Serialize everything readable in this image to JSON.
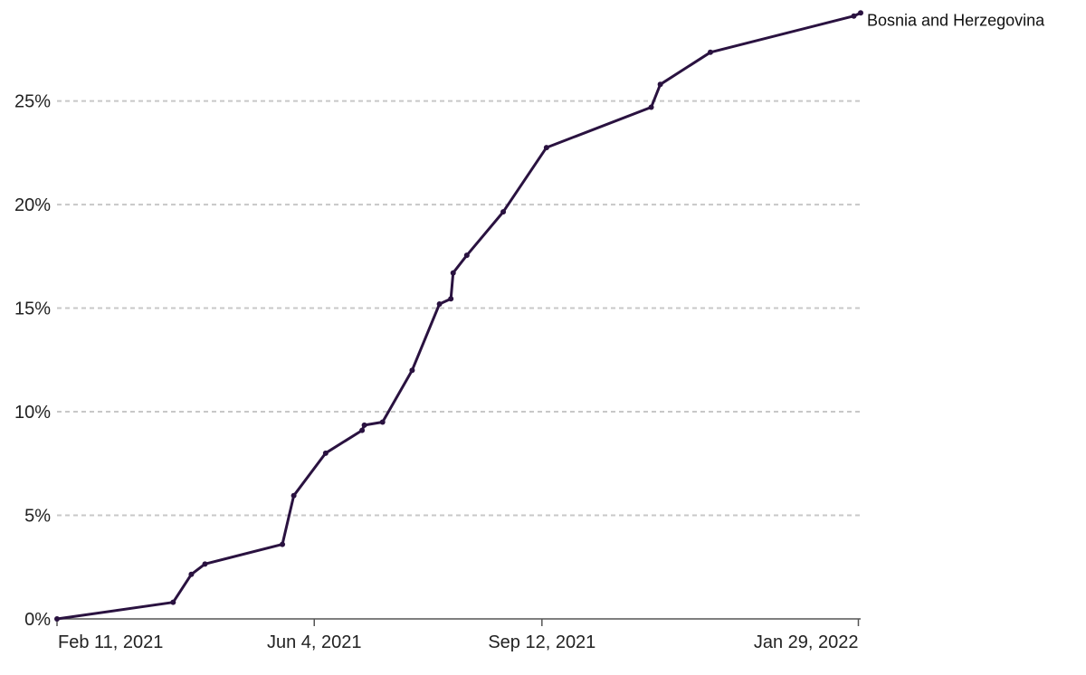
{
  "chart_data": {
    "type": "line",
    "title": "",
    "xlabel": "",
    "ylabel": "",
    "ylim": [
      0,
      29
    ],
    "xlim": [
      "2021-02-11",
      "2022-01-30"
    ],
    "y_ticks": [
      {
        "value": 0,
        "label": "0%"
      },
      {
        "value": 5,
        "label": "5%"
      },
      {
        "value": 10,
        "label": "10%"
      },
      {
        "value": 15,
        "label": "15%"
      },
      {
        "value": 20,
        "label": "20%"
      },
      {
        "value": 25,
        "label": "25%"
      }
    ],
    "x_ticks": [
      {
        "date": "2021-02-11",
        "label": "Feb 11, 2021"
      },
      {
        "date": "2021-06-04",
        "label": "Jun 4, 2021"
      },
      {
        "date": "2021-09-12",
        "label": "Sep 12, 2021"
      },
      {
        "date": "2022-01-29",
        "label": "Jan 29, 2022"
      }
    ],
    "grid": true,
    "series": [
      {
        "name": "Bosnia and Herzegovina",
        "color": "#2a1240",
        "points": [
          {
            "x": "2021-02-11",
            "y": 0.0
          },
          {
            "x": "2021-04-03",
            "y": 0.8
          },
          {
            "x": "2021-04-11",
            "y": 2.15
          },
          {
            "x": "2021-04-17",
            "y": 2.65
          },
          {
            "x": "2021-05-21",
            "y": 3.6
          },
          {
            "x": "2021-05-26",
            "y": 5.95
          },
          {
            "x": "2021-06-09",
            "y": 8.0
          },
          {
            "x": "2021-06-25",
            "y": 9.1
          },
          {
            "x": "2021-06-26",
            "y": 9.35
          },
          {
            "x": "2021-07-04",
            "y": 9.5
          },
          {
            "x": "2021-07-17",
            "y": 12.0
          },
          {
            "x": "2021-07-29",
            "y": 15.2
          },
          {
            "x": "2021-08-03",
            "y": 15.45
          },
          {
            "x": "2021-08-04",
            "y": 16.7
          },
          {
            "x": "2021-08-10",
            "y": 17.55
          },
          {
            "x": "2021-08-26",
            "y": 19.65
          },
          {
            "x": "2021-09-14",
            "y": 22.75
          },
          {
            "x": "2021-10-30",
            "y": 24.7
          },
          {
            "x": "2021-11-03",
            "y": 25.8
          },
          {
            "x": "2021-11-25",
            "y": 27.35
          },
          {
            "x": "2022-01-27",
            "y": 29.1
          },
          {
            "x": "2022-01-30",
            "y": 29.25
          }
        ]
      }
    ]
  }
}
